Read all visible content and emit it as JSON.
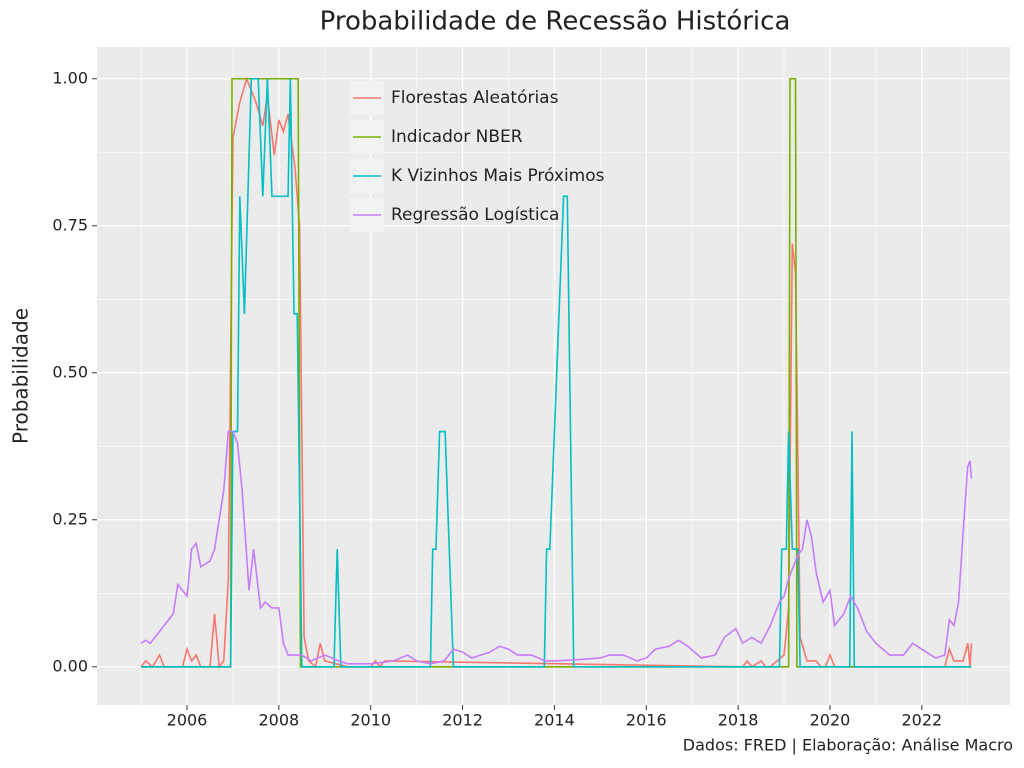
{
  "chart_data": {
    "type": "line",
    "title": "Probabilidade de Recessão Histórica",
    "y_label": "Probabilidade",
    "caption": "Dados: FRED | Elaboração: Análise Macro",
    "xlim": [
      2004.04,
      2023.92
    ],
    "ylim": [
      -0.065,
      1.054
    ],
    "xticks": [
      2006,
      2008,
      2010,
      2012,
      2014,
      2016,
      2018,
      2020,
      2022
    ],
    "x_minor_ticks": [
      2005,
      2007,
      2009,
      2011,
      2013,
      2015,
      2017,
      2019,
      2021,
      2023
    ],
    "yticks": [
      {
        "value": 0,
        "label": "0.00"
      },
      {
        "value": 0.25,
        "label": "0.25"
      },
      {
        "value": 0.5,
        "label": "0.50"
      },
      {
        "value": 0.75,
        "label": "0.75"
      },
      {
        "value": 1,
        "label": "1.00"
      }
    ],
    "y_minor_ticks": [
      0.125,
      0.375,
      0.625,
      0.875
    ],
    "grid": true,
    "legend": "top-left",
    "series": [
      {
        "name": "Florestas Aleatórias",
        "color": "#F8766D",
        "x": [
          2005.0,
          2005.1,
          2005.25,
          2005.4,
          2005.5,
          2005.9,
          2006.0,
          2006.1,
          2006.2,
          2006.3,
          2006.5,
          2006.6,
          2006.7,
          2006.8,
          2006.9,
          2007.0,
          2007.15,
          2007.3,
          2007.4,
          2007.5,
          2007.65,
          2007.75,
          2007.9,
          2008.0,
          2008.1,
          2008.2,
          2008.35,
          2008.45,
          2008.55,
          2008.65,
          2008.8,
          2008.9,
          2009.0,
          2009.5,
          2010.0,
          2010.1,
          2010.2,
          2010.3,
          2018.1,
          2018.2,
          2018.3,
          2018.5,
          2018.6,
          2018.7,
          2019.0,
          2019.1,
          2019.18,
          2019.25,
          2019.35,
          2019.5,
          2019.7,
          2019.8,
          2019.9,
          2020.0,
          2020.1,
          2022.5,
          2022.6,
          2022.7,
          2022.9,
          2023.0,
          2023.05,
          2023.08
        ],
        "values": [
          0,
          0.01,
          0,
          0.02,
          0,
          0,
          0.03,
          0.01,
          0.02,
          0,
          0,
          0.09,
          0,
          0.01,
          0.15,
          0.9,
          0.96,
          1.0,
          0.98,
          0.96,
          0.92,
          0.97,
          0.87,
          0.93,
          0.91,
          0.94,
          0.85,
          0.75,
          0.05,
          0.01,
          0,
          0.04,
          0.01,
          0,
          0,
          0.01,
          0,
          0.01,
          0,
          0.01,
          0,
          0.01,
          0,
          0,
          0.02,
          0.1,
          0.72,
          0.67,
          0.05,
          0.01,
          0.01,
          0,
          0,
          0.02,
          0,
          0,
          0.03,
          0.01,
          0.01,
          0.04,
          0,
          0.04
        ]
      },
      {
        "name": "Indicador NBER",
        "color": "#7CAE00",
        "x": [
          2005.0,
          2006.95,
          2006.98,
          2008.42,
          2008.47,
          2019.1,
          2019.13,
          2019.25,
          2019.28,
          2023.08
        ],
        "values": [
          0,
          0,
          1,
          1,
          0,
          0,
          1,
          1,
          0,
          0
        ]
      },
      {
        "name": "K Vizinhos Mais Próximos",
        "color": "#00BFC4",
        "x": [
          2005.0,
          2006.95,
          2007.0,
          2007.1,
          2007.15,
          2007.25,
          2007.4,
          2007.55,
          2007.65,
          2007.75,
          2007.85,
          2008.2,
          2008.25,
          2008.33,
          2008.4,
          2008.5,
          2009.2,
          2009.27,
          2009.35,
          2011.3,
          2011.35,
          2011.42,
          2011.5,
          2011.62,
          2011.8,
          2013.78,
          2013.83,
          2013.9,
          2014.2,
          2014.28,
          2014.42,
          2018.9,
          2018.95,
          2019.05,
          2019.1,
          2019.18,
          2019.3,
          2019.35,
          2020.43,
          2020.48,
          2020.53,
          2023.08
        ],
        "values": [
          0,
          0,
          0.4,
          0.4,
          0.8,
          0.6,
          1.0,
          1.0,
          0.8,
          1.0,
          0.8,
          0.8,
          1.0,
          0.6,
          0.6,
          0,
          0,
          0.2,
          0,
          0,
          0.2,
          0.2,
          0.4,
          0.4,
          0,
          0,
          0.2,
          0.2,
          0.8,
          0.8,
          0,
          0,
          0.2,
          0.2,
          0.4,
          0.2,
          0.2,
          0,
          0,
          0.4,
          0,
          0
        ]
      },
      {
        "name": "Regressão Logística",
        "color": "#C77CFF",
        "x": [
          2005.0,
          2005.1,
          2005.2,
          2005.5,
          2005.7,
          2005.8,
          2006.0,
          2006.1,
          2006.2,
          2006.3,
          2006.5,
          2006.6,
          2006.7,
          2006.8,
          2006.9,
          2007.0,
          2007.1,
          2007.2,
          2007.35,
          2007.45,
          2007.6,
          2007.7,
          2007.85,
          2008.0,
          2008.1,
          2008.2,
          2008.5,
          2008.7,
          2009.0,
          2009.3,
          2009.5,
          2010.0,
          2010.5,
          2010.8,
          2011.0,
          2011.3,
          2011.6,
          2011.8,
          2012.0,
          2012.2,
          2012.6,
          2012.8,
          2013.0,
          2013.2,
          2013.5,
          2013.8,
          2014.0,
          2014.5,
          2015.0,
          2015.2,
          2015.5,
          2015.8,
          2016.0,
          2016.2,
          2016.5,
          2016.7,
          2016.9,
          2017.2,
          2017.5,
          2017.7,
          2017.95,
          2018.1,
          2018.3,
          2018.5,
          2018.7,
          2018.9,
          2019.0,
          2019.1,
          2019.3,
          2019.4,
          2019.5,
          2019.6,
          2019.7,
          2019.85,
          2020.0,
          2020.1,
          2020.3,
          2020.45,
          2020.6,
          2020.8,
          2021.0,
          2021.3,
          2021.6,
          2021.8,
          2022.0,
          2022.3,
          2022.5,
          2022.6,
          2022.7,
          2022.8,
          2022.9,
          2023.0,
          2023.05,
          2023.08
        ],
        "values": [
          0.04,
          0.045,
          0.04,
          0.07,
          0.09,
          0.14,
          0.12,
          0.2,
          0.21,
          0.17,
          0.18,
          0.2,
          0.25,
          0.3,
          0.4,
          0.4,
          0.38,
          0.3,
          0.13,
          0.2,
          0.1,
          0.11,
          0.1,
          0.1,
          0.04,
          0.02,
          0.02,
          0.01,
          0.02,
          0.01,
          0.005,
          0.005,
          0.01,
          0.02,
          0.01,
          0.005,
          0.01,
          0.03,
          0.025,
          0.015,
          0.025,
          0.035,
          0.03,
          0.02,
          0.02,
          0.01,
          0.01,
          0.012,
          0.015,
          0.02,
          0.02,
          0.01,
          0.015,
          0.03,
          0.035,
          0.045,
          0.035,
          0.015,
          0.02,
          0.05,
          0.065,
          0.04,
          0.05,
          0.04,
          0.07,
          0.11,
          0.12,
          0.15,
          0.19,
          0.2,
          0.25,
          0.22,
          0.16,
          0.11,
          0.13,
          0.07,
          0.09,
          0.12,
          0.1,
          0.06,
          0.04,
          0.02,
          0.02,
          0.04,
          0.03,
          0.015,
          0.02,
          0.08,
          0.07,
          0.11,
          0.23,
          0.34,
          0.35,
          0.32
        ]
      }
    ]
  }
}
